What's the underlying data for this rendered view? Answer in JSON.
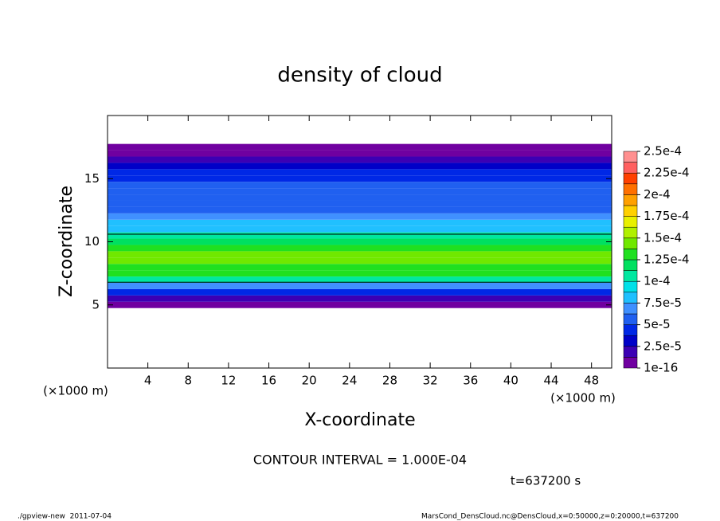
{
  "chart_data": {
    "type": "contour",
    "title": "density of cloud",
    "x_label": "X-coordinate",
    "y_label": "Z-coordinate",
    "x_unit": "(×1000 m)",
    "y_unit": "(×1000 m)",
    "xlim": [
      0,
      50
    ],
    "xticks": [
      4,
      8,
      12,
      16,
      20,
      24,
      28,
      32,
      36,
      40,
      44,
      48
    ],
    "ylim": [
      0,
      20
    ],
    "yticks": [
      5,
      10,
      15
    ],
    "z": [
      5,
      5.5,
      6,
      6.5,
      7,
      7.5,
      8,
      8.5,
      9,
      9.5,
      10,
      10.5,
      11,
      11.5,
      12,
      12.5,
      13,
      13.5,
      14,
      14.5,
      15,
      15.5,
      16,
      16.5,
      17,
      17.5
    ],
    "values": [
      1e-06,
      1.5e-05,
      4e-05,
      7e-05,
      0.000105,
      0.000125,
      0.000135,
      0.000145,
      0.000145,
      0.000135,
      0.00012,
      0.0001,
      8.5e-05,
      7.5e-05,
      6.8e-05,
      6.2e-05,
      5.8e-05,
      5.5e-05,
      5.2e-05,
      5e-05,
      4.8e-05,
      4.5e-05,
      3e-05,
      1.5e-05,
      1e-06,
      1e-07
    ],
    "contour_z": [
      6.8,
      10.6
    ],
    "colorbar_ticks": [
      {
        "value": 1e-16,
        "label": "1e-16"
      },
      {
        "value": 2.5e-05,
        "label": "2.5e-5"
      },
      {
        "value": 5e-05,
        "label": "5e-5"
      },
      {
        "value": 7.5e-05,
        "label": "7.5e-5"
      },
      {
        "value": 0.0001,
        "label": "1e-4"
      },
      {
        "value": 0.000125,
        "label": "1.25e-4"
      },
      {
        "value": 0.00015,
        "label": "1.5e-4"
      },
      {
        "value": 0.000175,
        "label": "1.75e-4"
      },
      {
        "value": 0.0002,
        "label": "2e-4"
      },
      {
        "value": 0.000225,
        "label": "2.25e-4"
      },
      {
        "value": 0.00025,
        "label": "2.5e-4"
      }
    ],
    "colors": [
      "#7000a0",
      "#3c00b4",
      "#0000c8",
      "#0028e6",
      "#2060f0",
      "#4090ff",
      "#20c0ff",
      "#00e0e8",
      "#00e8a0",
      "#00e060",
      "#20e020",
      "#70e800",
      "#b0f000",
      "#e8f000",
      "#ffd000",
      "#ffa000",
      "#ff7000",
      "#ff4000",
      "#ff6060",
      "#ff9090"
    ],
    "contour_note": "CONTOUR INTERVAL = 1.000E-04",
    "time_label": "t=637200 s",
    "footer_left": "./gpview-new  2011-07-04",
    "footer_right": "MarsCond_DensCloud.nc@DensCloud,x=0:50000,z=0:20000,t=637200"
  }
}
